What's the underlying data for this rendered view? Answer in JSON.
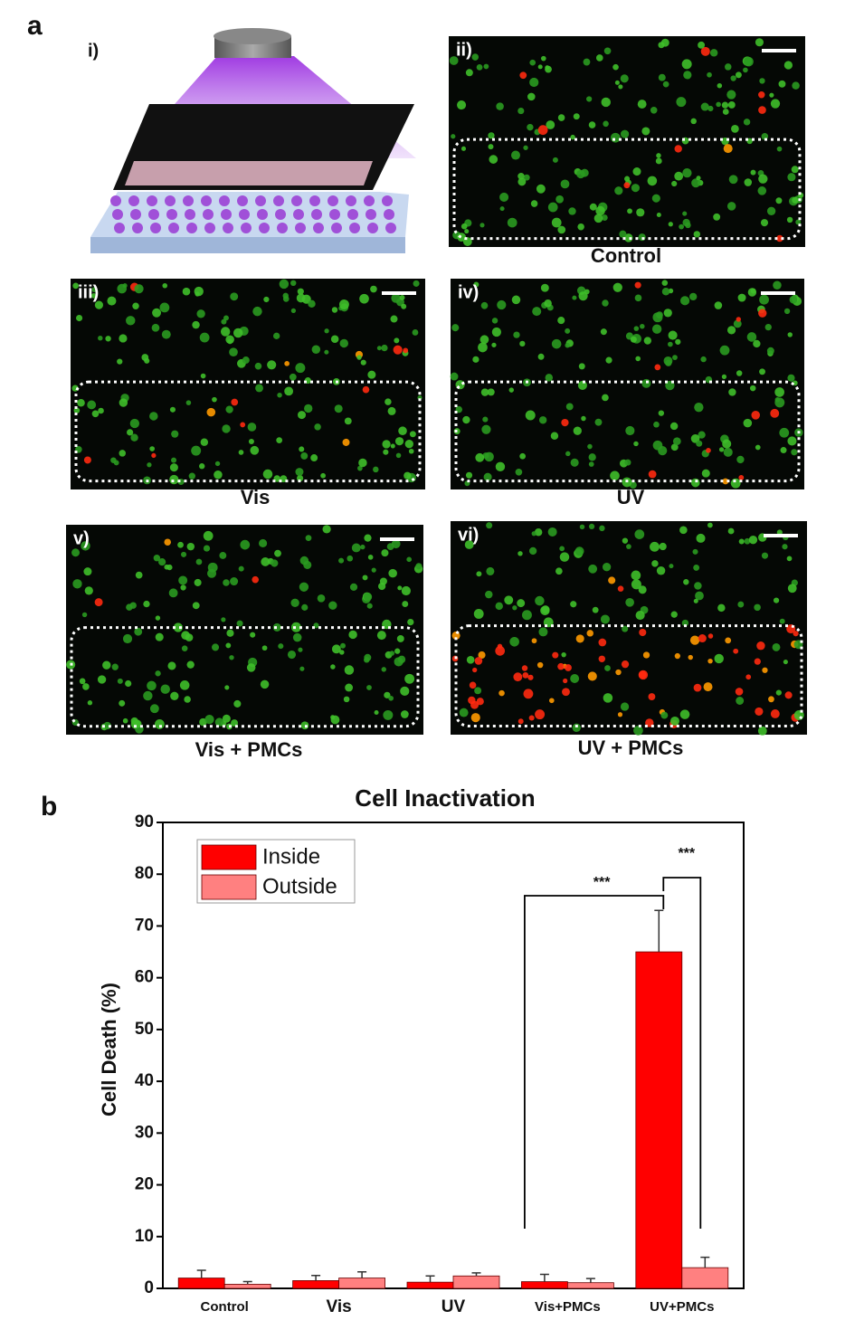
{
  "panel_a": {
    "label": "a",
    "scheme_label": "i)",
    "images": [
      {
        "label": "ii)",
        "caption": "Control"
      },
      {
        "label": "iii)",
        "caption": "Vis"
      },
      {
        "label": "iv)",
        "caption": "UV"
      },
      {
        "label": "v)",
        "caption": "Vis + PMCs"
      },
      {
        "label": "vi)",
        "caption": "UV + PMCs"
      }
    ]
  },
  "panel_b": {
    "label": "b"
  },
  "chart_data": {
    "type": "bar",
    "title": "Cell Inactivation",
    "y_label": "Cell Death (%)",
    "categories": [
      "Control",
      "Vis",
      "UV",
      "Vis+PMCs",
      "UV+PMCs"
    ],
    "series": [
      {
        "name": "Inside",
        "color": "#ff0000",
        "values": [
          2,
          1.5,
          1.2,
          1.3,
          65
        ],
        "errors": [
          1.5,
          1,
          1.2,
          1.4,
          8
        ]
      },
      {
        "name": "Outside",
        "color": "#ff8080",
        "values": [
          0.8,
          2,
          2.4,
          1.1,
          4
        ],
        "errors": [
          0.5,
          1.2,
          0.6,
          0.8,
          2
        ]
      }
    ],
    "ylim": [
      0,
      90
    ],
    "yticks": [
      0,
      10,
      20,
      30,
      40,
      50,
      60,
      70,
      80,
      90
    ],
    "legend": "upper left",
    "annotations": [
      "***",
      "***"
    ]
  }
}
